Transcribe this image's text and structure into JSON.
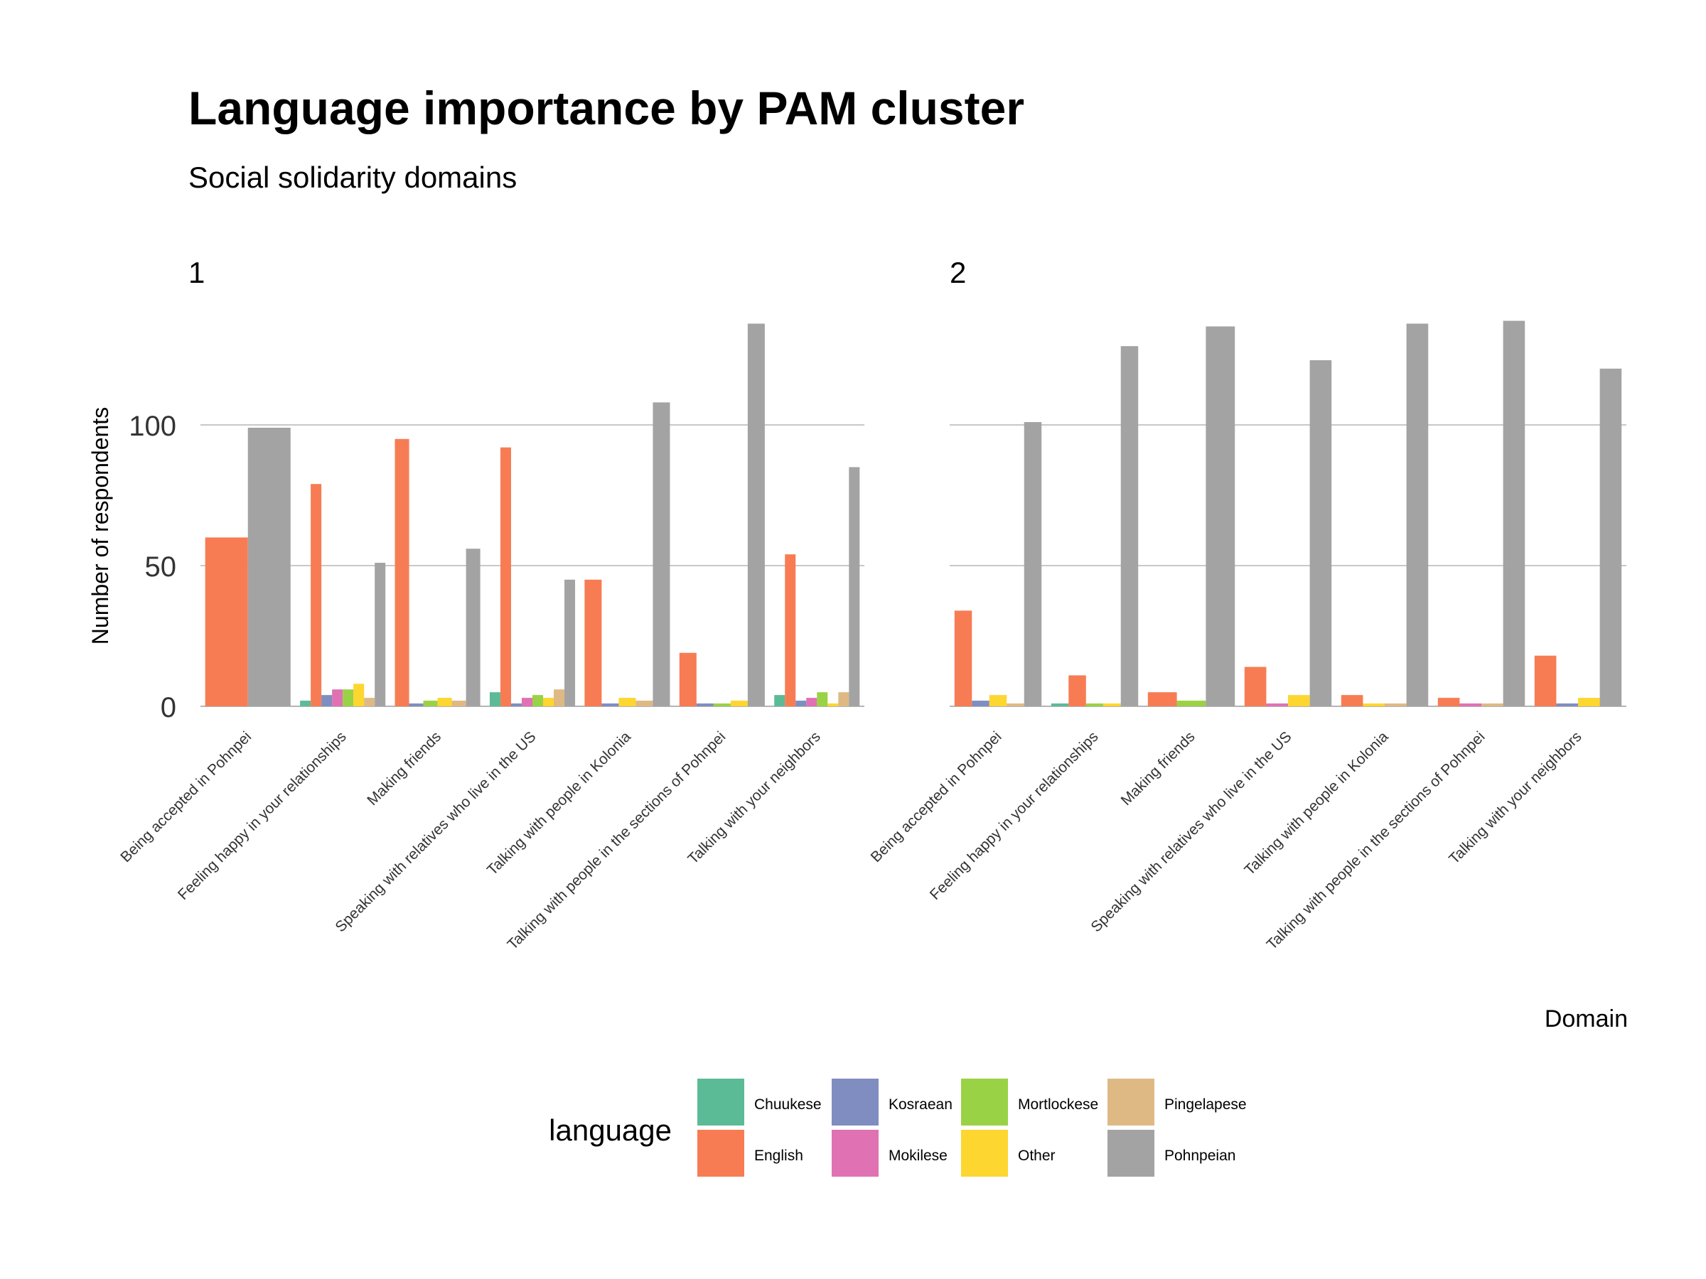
{
  "title": "Language importance by PAM cluster",
  "subtitle": "Social solidarity domains",
  "ylabel": "Number of respondents",
  "xlabel": "Domain",
  "legend_title": "language",
  "colors": {
    "Chuukese": "#5BBB96",
    "English": "#F77C54",
    "Kosraean": "#7F8DC0",
    "Mokilese": "#E071B3",
    "Mortlockese": "#9AD245",
    "Other": "#FDD630",
    "Pingelapese": "#DFB984",
    "Pohnpeian": "#A3A3A3"
  },
  "chart_data": {
    "type": "bar",
    "ylim": [
      0,
      140
    ],
    "yticks": [
      0,
      50,
      100
    ],
    "grid": true,
    "legend_position": "bottom",
    "languages": [
      "Chuukese",
      "English",
      "Kosraean",
      "Mokilese",
      "Mortlockese",
      "Other",
      "Pingelapese",
      "Pohnpeian"
    ],
    "categories": [
      "Being accepted in Pohnpei",
      "Feeling happy in your relationships",
      "Making friends",
      "Speaking with relatives who live in the US",
      "Talking with people in Kolonia",
      "Talking with people in the sections of Pohnpei",
      "Talking with your neighbors"
    ],
    "panels": [
      {
        "label": "1",
        "values": {
          "Being accepted in Pohnpei": {
            "English": 60,
            "Pohnpeian": 99
          },
          "Feeling happy in your relationships": {
            "Chuukese": 2,
            "English": 79,
            "Kosraean": 4,
            "Mokilese": 6,
            "Mortlockese": 6,
            "Other": 8,
            "Pingelapese": 3,
            "Pohnpeian": 51
          },
          "Making friends": {
            "English": 95,
            "Kosraean": 1,
            "Mortlockese": 2,
            "Other": 3,
            "Pingelapese": 2,
            "Pohnpeian": 56
          },
          "Speaking with relatives who live in the US": {
            "Chuukese": 5,
            "English": 92,
            "Kosraean": 1,
            "Mokilese": 3,
            "Mortlockese": 4,
            "Other": 3,
            "Pingelapese": 6,
            "Pohnpeian": 45
          },
          "Talking with people in Kolonia": {
            "English": 45,
            "Kosraean": 1,
            "Other": 3,
            "Pingelapese": 2,
            "Pohnpeian": 108
          },
          "Talking with people in the sections of Pohnpei": {
            "English": 19,
            "Kosraean": 1,
            "Mortlockese": 1,
            "Other": 2,
            "Pohnpeian": 136
          },
          "Talking with your neighbors": {
            "Chuukese": 4,
            "English": 54,
            "Kosraean": 2,
            "Mokilese": 3,
            "Mortlockese": 5,
            "Other": 1,
            "Pingelapese": 5,
            "Pohnpeian": 85
          }
        }
      },
      {
        "label": "2",
        "values": {
          "Being accepted in Pohnpei": {
            "English": 34,
            "Kosraean": 2,
            "Other": 4,
            "Pingelapese": 1,
            "Pohnpeian": 101
          },
          "Feeling happy in your relationships": {
            "Chuukese": 1,
            "English": 11,
            "Mortlockese": 1,
            "Other": 1,
            "Pohnpeian": 128
          },
          "Making friends": {
            "English": 5,
            "Mortlockese": 2,
            "Pohnpeian": 135
          },
          "Speaking with relatives who live in the US": {
            "English": 14,
            "Mokilese": 1,
            "Other": 4,
            "Pohnpeian": 123
          },
          "Talking with people in Kolonia": {
            "English": 4,
            "Other": 1,
            "Pingelapese": 1,
            "Pohnpeian": 136
          },
          "Talking with people in the sections of Pohnpei": {
            "English": 3,
            "Mokilese": 1,
            "Pingelapese": 1,
            "Pohnpeian": 137
          },
          "Talking with your neighbors": {
            "English": 18,
            "Kosraean": 1,
            "Other": 3,
            "Pohnpeian": 120
          }
        }
      }
    ]
  }
}
